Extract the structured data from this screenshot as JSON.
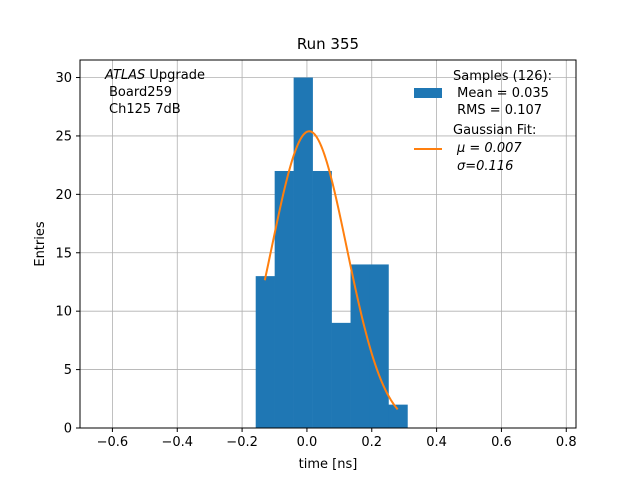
{
  "chart_data": {
    "type": "bar",
    "title": "Run 355",
    "xlabel": "time [ns]",
    "ylabel": "Entries",
    "xlim": [
      -0.7,
      0.83
    ],
    "ylim": [
      0,
      31.5
    ],
    "xticks": [
      -0.6,
      -0.4,
      -0.2,
      0.0,
      0.2,
      0.4,
      0.6,
      0.8
    ],
    "xtick_labels": [
      "−0.6",
      "−0.4",
      "−0.2",
      "0.0",
      "0.2",
      "0.4",
      "0.6",
      "0.8"
    ],
    "yticks": [
      0,
      5,
      10,
      15,
      20,
      25,
      30
    ],
    "ytick_labels": [
      "0",
      "5",
      "10",
      "15",
      "20",
      "25",
      "30"
    ],
    "grid": true,
    "histogram": {
      "name": "Samples (126):",
      "color": "#1f77b4",
      "bin_edges": [
        -0.158,
        -0.0995,
        -0.041,
        0.0175,
        0.076,
        0.1345,
        0.193,
        0.2515,
        0.31
      ],
      "counts": [
        13,
        22,
        30,
        22,
        9,
        14,
        14,
        2
      ]
    },
    "fit": {
      "name": "Gaussian Fit:",
      "color": "#ff7f0e",
      "type": "gaussian",
      "amplitude": 25.4,
      "mu": 0.007,
      "sigma": 0.116,
      "x_range": [
        -0.13,
        0.28
      ]
    },
    "legend": {
      "placement": "upper right",
      "entries": [
        {
          "series": "histogram",
          "lines": [
            "Samples (126):",
            " Mean = 0.035",
            " RMS = 0.107"
          ]
        },
        {
          "series": "fit",
          "lines": [
            "Gaussian Fit:",
            "μ = 0.007",
            "σ=0.116"
          ]
        }
      ]
    },
    "annotation": {
      "placement": "upper left",
      "italic_word": "ATLAS",
      "rest_first_line": " Upgrade",
      "lines": [
        "Board259",
        "Ch125 7dB"
      ]
    }
  }
}
